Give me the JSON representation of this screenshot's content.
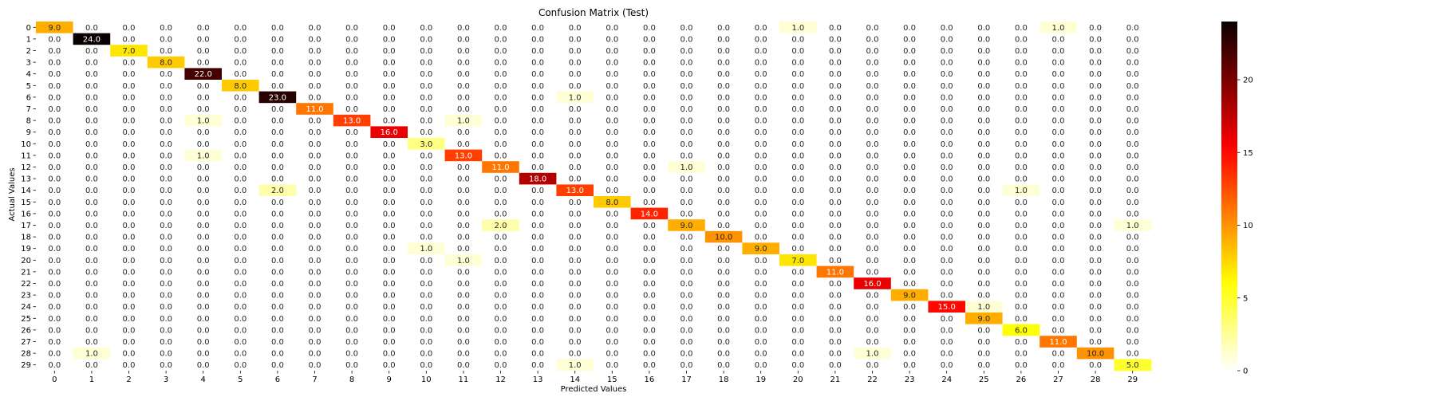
{
  "chart_data": {
    "type": "heatmap",
    "title": "Confusion Matrix (Test)",
    "xlabel": "Predicted Values",
    "ylabel": "Actual Values",
    "colormap": "hot_r",
    "vmin": 0,
    "vmax": 24,
    "colorbar_ticks": [
      "0",
      "5",
      "10",
      "15",
      "20"
    ],
    "x_categories": [
      "0",
      "1",
      "2",
      "3",
      "4",
      "5",
      "6",
      "7",
      "8",
      "9",
      "10",
      "11",
      "12",
      "13",
      "14",
      "15",
      "16",
      "17",
      "18",
      "19",
      "20",
      "21",
      "22",
      "23",
      "24",
      "25",
      "26",
      "27",
      "28",
      "29"
    ],
    "y_categories": [
      "0",
      "1",
      "2",
      "3",
      "4",
      "5",
      "6",
      "7",
      "8",
      "9",
      "10",
      "11",
      "12",
      "13",
      "14",
      "15",
      "16",
      "17",
      "18",
      "19",
      "20",
      "21",
      "22",
      "23",
      "24",
      "25",
      "26",
      "27",
      "28",
      "29"
    ],
    "diagonal": [
      9,
      24,
      7,
      8,
      22,
      8,
      23,
      11,
      13,
      16,
      3,
      13,
      11,
      18,
      13,
      8,
      14,
      9,
      10,
      9,
      7,
      11,
      16,
      9,
      15,
      9,
      6,
      11,
      10,
      5
    ],
    "off_diagonal": [
      {
        "row": 0,
        "col": 20,
        "value": 1
      },
      {
        "row": 0,
        "col": 27,
        "value": 1
      },
      {
        "row": 6,
        "col": 14,
        "value": 1
      },
      {
        "row": 8,
        "col": 4,
        "value": 1
      },
      {
        "row": 8,
        "col": 11,
        "value": 1
      },
      {
        "row": 11,
        "col": 4,
        "value": 1
      },
      {
        "row": 12,
        "col": 17,
        "value": 1
      },
      {
        "row": 14,
        "col": 6,
        "value": 2
      },
      {
        "row": 14,
        "col": 26,
        "value": 1
      },
      {
        "row": 17,
        "col": 12,
        "value": 2
      },
      {
        "row": 17,
        "col": 29,
        "value": 1
      },
      {
        "row": 19,
        "col": 10,
        "value": 1
      },
      {
        "row": 20,
        "col": 11,
        "value": 1
      },
      {
        "row": 24,
        "col": 25,
        "value": 1
      },
      {
        "row": 28,
        "col": 1,
        "value": 1
      },
      {
        "row": 28,
        "col": 22,
        "value": 1
      },
      {
        "row": 29,
        "col": 14,
        "value": 1
      }
    ],
    "value_format": "one_decimal"
  }
}
